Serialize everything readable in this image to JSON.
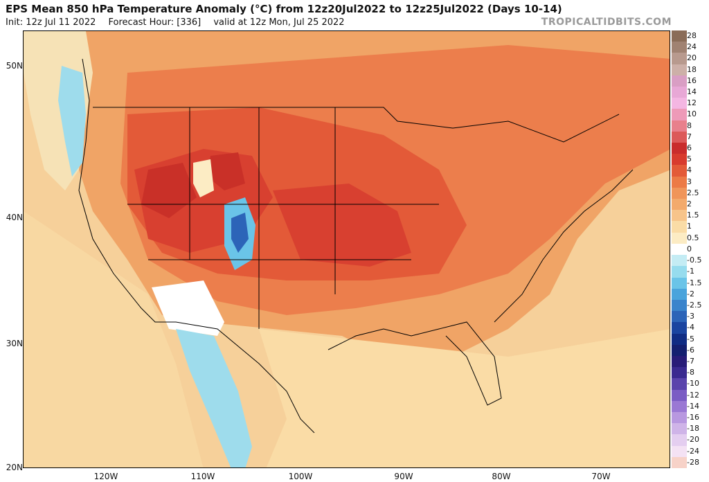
{
  "header": {
    "title": "EPS Mean 850 hPa Temperature Anomaly (°C) from 12z20Jul2022 to 12z25Jul2022 (Days 10-14)",
    "init": "Init: 12z Jul 11 2022",
    "forecast_hour": "Forecast Hour: [336]",
    "valid": "valid at 12z Mon, Jul 25 2022",
    "brand": "TROPICALTIDBITS.COM"
  },
  "map": {
    "lat_labels": [
      "50N",
      "40N",
      "30N",
      "20N"
    ],
    "lon_labels": [
      "120W",
      "110W",
      "100W",
      "90W",
      "80W",
      "70W"
    ]
  },
  "colorbar": {
    "labels": [
      "28",
      "24",
      "20",
      "18",
      "16",
      "14",
      "12",
      "10",
      "8",
      "7",
      "6",
      "5",
      "4",
      "3",
      "2.5",
      "2",
      "1.5",
      "1",
      "0.5",
      "0",
      "-0.5",
      "-1",
      "-1.5",
      "-2",
      "-2.5",
      "-3",
      "-4",
      "-5",
      "-6",
      "-7",
      "-8",
      "-10",
      "-12",
      "-14",
      "-16",
      "-18",
      "-20",
      "-24",
      "-28"
    ],
    "colors": [
      "#8a6c58",
      "#a08272",
      "#b89a8e",
      "#cdb0a8",
      "#d99ec4",
      "#e8a8d6",
      "#f4b6e2",
      "#ee9ab8",
      "#e8808c",
      "#dc5a5a",
      "#c92c2c",
      "#d83b2e",
      "#e35a38",
      "#ec7a46",
      "#f0955a",
      "#f3aa6c",
      "#f7c48a",
      "#fadca6",
      "#fcecc4",
      "#ffffff",
      "#c4ecf4",
      "#96dcee",
      "#6ac4e8",
      "#4aa4dc",
      "#3a84cc",
      "#2c64b8",
      "#1a44a0",
      "#102c84",
      "#142070",
      "#281c78",
      "#3a2a90",
      "#5a44ac",
      "#7a5cc4",
      "#9a78d4",
      "#b898e0",
      "#cfb4e8",
      "#e4cef0",
      "#f4e2f4",
      "#f7d2c8"
    ]
  }
}
